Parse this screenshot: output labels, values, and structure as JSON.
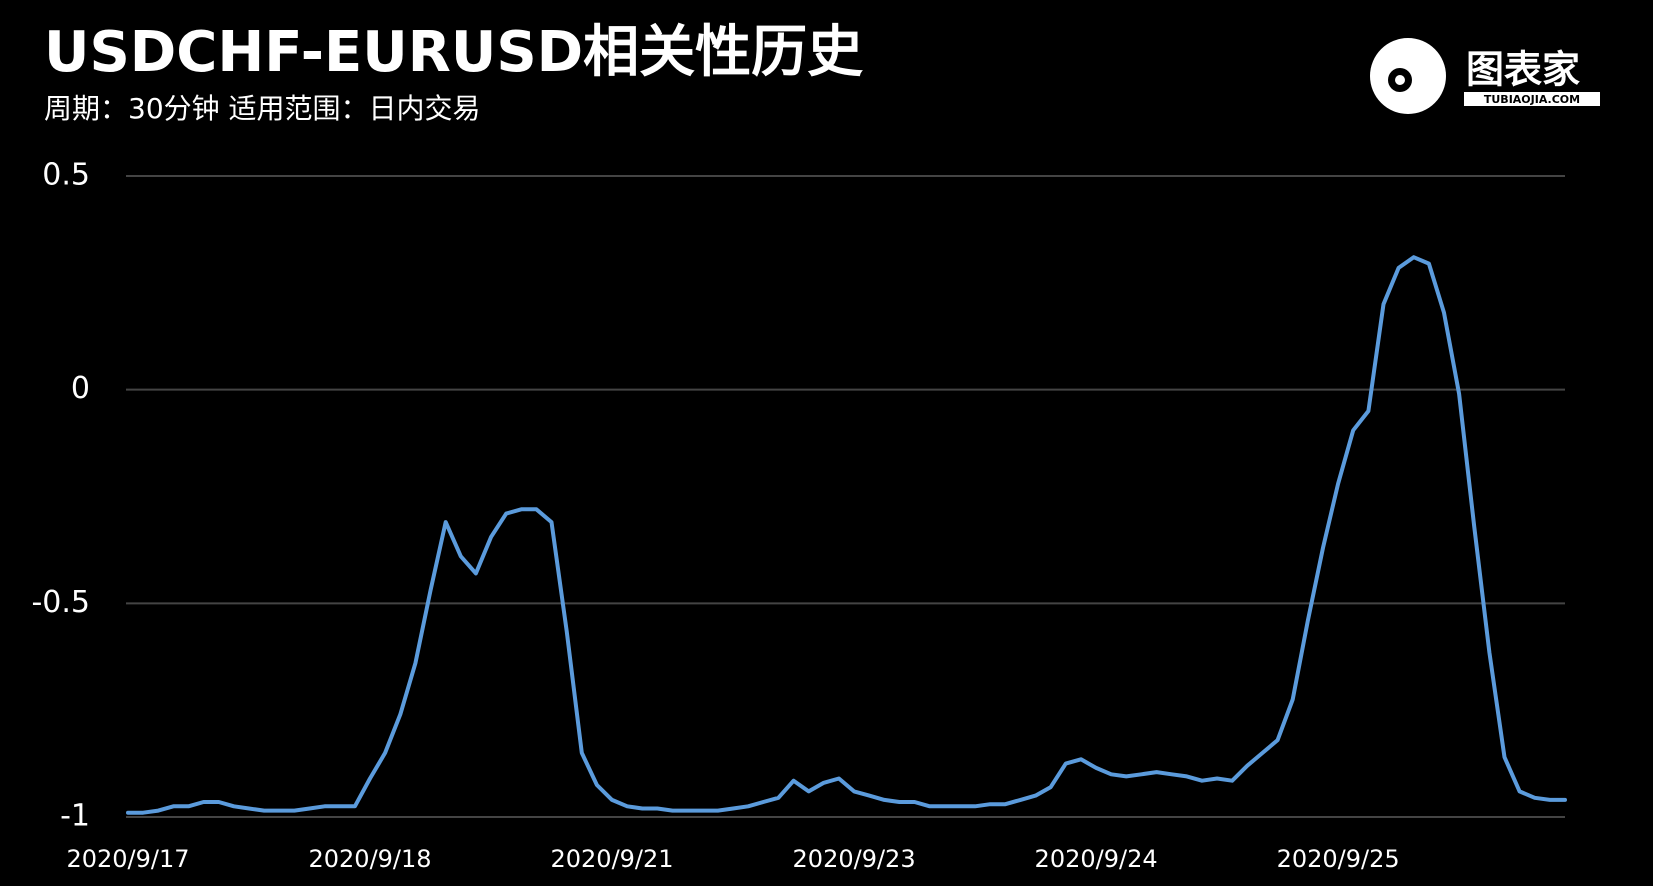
{
  "chart_data": {
    "type": "line",
    "title": "USDCHF-EURUSD相关性历史",
    "subtitle": "周期：30分钟  适用范围：日内交易",
    "x": [
      "2020/9/17",
      null,
      null,
      null,
      null,
      null,
      null,
      null,
      null,
      null,
      null,
      null,
      null,
      null,
      null,
      null,
      "2020/9/18",
      null,
      null,
      null,
      null,
      null,
      null,
      null,
      null,
      null,
      null,
      null,
      null,
      null,
      null,
      null,
      "2020/9/21",
      null,
      null,
      null,
      null,
      null,
      null,
      null,
      null,
      null,
      null,
      null,
      null,
      null,
      null,
      null,
      "2020/9/23",
      null,
      null,
      null,
      null,
      null,
      null,
      null,
      null,
      null,
      null,
      null,
      null,
      null,
      null,
      null,
      "2020/9/24",
      null,
      null,
      null,
      null,
      null,
      null,
      null,
      null,
      null,
      null,
      null,
      null,
      null,
      null,
      null,
      "2020/9/25",
      null,
      null,
      null,
      null,
      null,
      null,
      null,
      null,
      null,
      null,
      null,
      null,
      null,
      null,
      null
    ],
    "series": [
      {
        "name": "USDCHF-EURUSD",
        "color": "#5b9bdc",
        "values": [
          -0.99,
          -0.99,
          -0.985,
          -0.975,
          -0.975,
          -0.965,
          -0.965,
          -0.975,
          -0.98,
          -0.985,
          -0.985,
          -0.985,
          -0.98,
          -0.975,
          -0.975,
          -0.975,
          -0.91,
          -0.85,
          -0.76,
          -0.64,
          -0.47,
          -0.31,
          -0.39,
          -0.43,
          -0.345,
          -0.29,
          -0.28,
          -0.28,
          -0.31,
          -0.565,
          -0.85,
          -0.925,
          -0.96,
          -0.975,
          -0.98,
          -0.98,
          -0.985,
          -0.985,
          -0.985,
          -0.985,
          -0.98,
          -0.975,
          -0.965,
          -0.955,
          -0.915,
          -0.94,
          -0.92,
          -0.91,
          -0.94,
          -0.95,
          -0.96,
          -0.965,
          -0.965,
          -0.975,
          -0.975,
          -0.975,
          -0.975,
          -0.97,
          -0.97,
          -0.96,
          -0.95,
          -0.93,
          -0.875,
          -0.865,
          -0.885,
          -0.9,
          -0.905,
          -0.9,
          -0.895,
          -0.9,
          -0.905,
          -0.915,
          -0.91,
          -0.915,
          -0.88,
          -0.85,
          -0.82,
          -0.725,
          -0.54,
          -0.37,
          -0.22,
          -0.095,
          -0.05,
          0.2,
          0.285,
          0.31,
          0.295,
          0.18,
          -0.01,
          -0.32,
          -0.615,
          -0.86,
          -0.94,
          -0.955,
          -0.96,
          -0.96
        ]
      }
    ],
    "ylim": [
      -1,
      0.5
    ],
    "yticks": [
      0.5,
      0,
      -0.5,
      -1
    ],
    "grid": true
  },
  "logo": {
    "text": "图表家",
    "subtext": "TUBIAOJIA.COM"
  }
}
